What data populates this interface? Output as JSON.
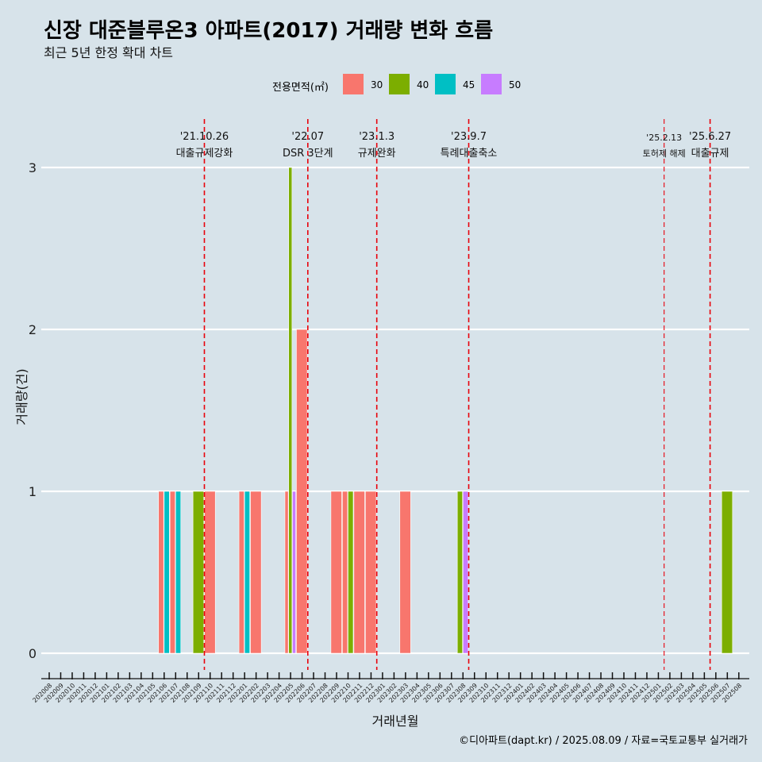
{
  "title": "신장 대준블루온3 아파트(2017) 거래량 변화 흐름",
  "subtitle": "최근 5년 한정 확대 차트",
  "caption": "©디아파트(dapt.kr) / 2025.08.09 / 자료=국토교통부 실거래가",
  "legend": {
    "title": "전용면적(㎡)",
    "items": [
      {
        "label": "30",
        "color": "#f8766d"
      },
      {
        "label": "40",
        "color": "#7cae00"
      },
      {
        "label": "45",
        "color": "#00bfc4"
      },
      {
        "label": "50",
        "color": "#c77cff"
      }
    ]
  },
  "chart_data": {
    "type": "bar",
    "xlabel": "거래년월",
    "ylabel": "거래량(건)",
    "ylim": [
      0,
      3
    ],
    "yticks": [
      0,
      1,
      2,
      3
    ],
    "categories": [
      "202008",
      "202009",
      "202010",
      "202011",
      "202012",
      "202101",
      "202102",
      "202103",
      "202104",
      "202105",
      "202106",
      "202107",
      "202108",
      "202109",
      "202110",
      "202111",
      "202112",
      "202201",
      "202202",
      "202203",
      "202204",
      "202205",
      "202206",
      "202207",
      "202208",
      "202209",
      "202210",
      "202211",
      "202212",
      "202301",
      "202302",
      "202303",
      "202304",
      "202305",
      "202306",
      "202307",
      "202308",
      "202309",
      "202310",
      "202311",
      "202312",
      "202401",
      "202402",
      "202403",
      "202404",
      "202405",
      "202406",
      "202407",
      "202408",
      "202409",
      "202410",
      "202411",
      "202412",
      "202501",
      "202502",
      "202503",
      "202504",
      "202505",
      "202506",
      "202507",
      "202508"
    ],
    "series": [
      {
        "name": "30",
        "color": "#f8766d",
        "points": [
          {
            "x": "202106",
            "y": 1
          },
          {
            "x": "202107",
            "y": 1
          },
          {
            "x": "202110",
            "y": 1
          },
          {
            "x": "202201",
            "y": 1
          },
          {
            "x": "202202",
            "y": 1
          },
          {
            "x": "202205",
            "y": 1
          },
          {
            "x": "202206",
            "y": 2
          },
          {
            "x": "202209",
            "y": 1
          },
          {
            "x": "202210",
            "y": 1
          },
          {
            "x": "202211",
            "y": 1
          },
          {
            "x": "202212",
            "y": 1
          },
          {
            "x": "202303",
            "y": 1
          }
        ]
      },
      {
        "name": "40",
        "color": "#7cae00",
        "points": [
          {
            "x": "202109",
            "y": 1
          },
          {
            "x": "202205",
            "y": 3
          },
          {
            "x": "202210",
            "y": 1
          },
          {
            "x": "202308",
            "y": 1
          },
          {
            "x": "202507",
            "y": 1
          }
        ]
      },
      {
        "name": "45",
        "color": "#00bfc4",
        "points": [
          {
            "x": "202106",
            "y": 1
          },
          {
            "x": "202107",
            "y": 1
          },
          {
            "x": "202201",
            "y": 1
          }
        ]
      },
      {
        "name": "50",
        "color": "#c77cff",
        "points": [
          {
            "x": "202205",
            "y": 1
          },
          {
            "x": "202308",
            "y": 1
          }
        ]
      }
    ],
    "events": [
      {
        "date": "'21.10.26",
        "label": "대출규제강화",
        "x": "202110",
        "small": false
      },
      {
        "date": "'22.07",
        "label": "DSR 3단계",
        "x": "202207",
        "small": false
      },
      {
        "date": "'23.1.3",
        "label": "규제완화",
        "x": "202301",
        "small": false
      },
      {
        "date": "'23.9.7",
        "label": "특례대출축소",
        "x": "202309",
        "small": false
      },
      {
        "date": "'25.2.13",
        "label": "토허제 해제",
        "x": "202502",
        "small": true
      },
      {
        "date": "'25.6.27",
        "label": "대출규제",
        "x": "202506",
        "small": false
      }
    ],
    "grid": true,
    "legend_position": "top"
  }
}
